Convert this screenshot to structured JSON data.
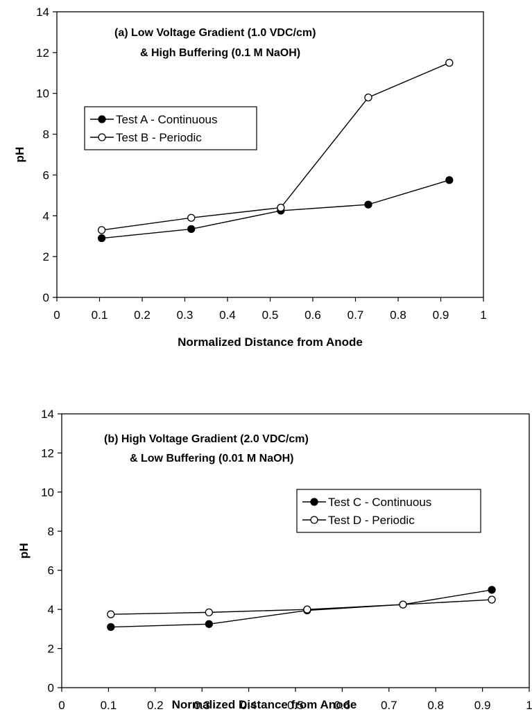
{
  "chart_data": [
    {
      "type": "line",
      "title": "",
      "annotation_lines": [
        "(a) Low Voltage Gradient (1.0 VDC/cm)",
        "& High Buffering (0.1 M NaOH)"
      ],
      "xlabel": "Normalized Distance from Anode",
      "ylabel": "pH",
      "xlim": [
        0,
        1
      ],
      "ylim": [
        0,
        14
      ],
      "xticks": [
        "0",
        "0.1",
        "0.2",
        "0.3",
        "0.4",
        "0.5",
        "0.6",
        "0.7",
        "0.8",
        "0.9",
        "1"
      ],
      "yticks": [
        "0",
        "2",
        "4",
        "6",
        "8",
        "10",
        "12",
        "14"
      ],
      "legend_position": "left",
      "series": [
        {
          "name": "Test A - Continuous",
          "marker": "filled-circle",
          "x": [
            0.105,
            0.315,
            0.525,
            0.73,
            0.92
          ],
          "y": [
            2.9,
            3.35,
            4.25,
            4.55,
            5.75
          ]
        },
        {
          "name": "Test B - Periodic",
          "marker": "open-circle",
          "x": [
            0.105,
            0.315,
            0.525,
            0.73,
            0.92
          ],
          "y": [
            3.3,
            3.9,
            4.4,
            9.8,
            11.5
          ]
        }
      ]
    },
    {
      "type": "line",
      "title": "",
      "annotation_lines": [
        "(b) High Voltage Gradient (2.0 VDC/cm)",
        "& Low Buffering (0.01 M NaOH)"
      ],
      "xlabel": "Normalized Distance from Anode",
      "ylabel": "pH",
      "xlim": [
        0,
        1
      ],
      "ylim": [
        0,
        14
      ],
      "xticks": [
        "0",
        "0.1",
        "0.2",
        "0.3",
        "0.4",
        "0.5",
        "0.6",
        "0.7",
        "0.8",
        "0.9",
        "1"
      ],
      "yticks": [
        "0",
        "2",
        "4",
        "6",
        "8",
        "10",
        "12",
        "14"
      ],
      "legend_position": "right",
      "series": [
        {
          "name": "Test C - Continuous",
          "marker": "filled-circle",
          "x": [
            0.105,
            0.315,
            0.525,
            0.73,
            0.92
          ],
          "y": [
            3.1,
            3.25,
            3.95,
            4.25,
            5.0
          ]
        },
        {
          "name": "Test D - Periodic",
          "marker": "open-circle",
          "x": [
            0.105,
            0.315,
            0.525,
            0.73,
            0.92
          ],
          "y": [
            3.75,
            3.85,
            4.0,
            4.25,
            4.5
          ]
        }
      ]
    }
  ]
}
